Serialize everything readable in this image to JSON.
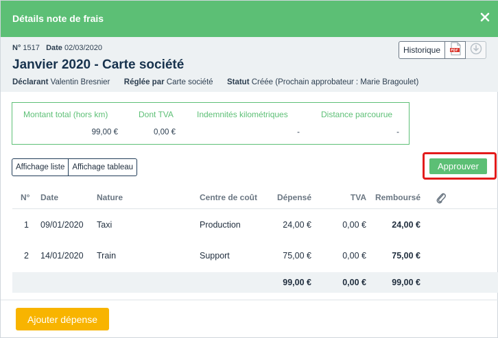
{
  "header": {
    "title": "Détails note de frais",
    "close_icon": "close-icon"
  },
  "meta": {
    "number_label": "N°",
    "number": "1517",
    "date_label": "Date",
    "date": "02/03/2020",
    "title": "Janvier 2020 - Carte société",
    "declarant_label": "Déclarant",
    "declarant": "Valentin Bresnier",
    "paid_by_label": "Réglée par",
    "paid_by": "Carte société",
    "status_label": "Statut",
    "status": "Créée (Prochain approbateur : Marie Bragoulet)"
  },
  "actions": {
    "history_label": "Historique",
    "pdf_icon": "pdf-icon",
    "download_icon": "download-icon"
  },
  "summary": [
    {
      "label": "Montant total (hors km)",
      "value": "99,00 €"
    },
    {
      "label": "Dont TVA",
      "value": "0,00 €"
    },
    {
      "label": "Indemnités kilométriques",
      "value": "-"
    },
    {
      "label": "Distance parcourue",
      "value": "-"
    }
  ],
  "views": {
    "list_label": "Affichage liste",
    "table_label": "Affichage tableau"
  },
  "approve_label": "Approuver",
  "table": {
    "headers": {
      "no": "N°",
      "date": "Date",
      "nature": "Nature",
      "cost_center": "Centre de coût",
      "spent": "Dépensé",
      "vat": "TVA",
      "refunded": "Remboursé",
      "attachment_icon": "paperclip-icon"
    },
    "rows": [
      {
        "no": "1",
        "date": "09/01/2020",
        "nature": "Taxi",
        "cost_center": "Production",
        "spent": "24,00 €",
        "vat": "0,00 €",
        "refunded": "24,00 €"
      },
      {
        "no": "2",
        "date": "14/01/2020",
        "nature": "Train",
        "cost_center": "Support",
        "spent": "75,00 €",
        "vat": "0,00 €",
        "refunded": "75,00 €"
      }
    ],
    "totals": {
      "spent": "99,00 €",
      "vat": "0,00 €",
      "refunded": "99,00 €"
    }
  },
  "add_expense_label": "Ajouter dépense",
  "colors": {
    "accent": "#5cbf75",
    "highlight": "#e31b1b",
    "add_button": "#f8b400",
    "title": "#17324d"
  }
}
